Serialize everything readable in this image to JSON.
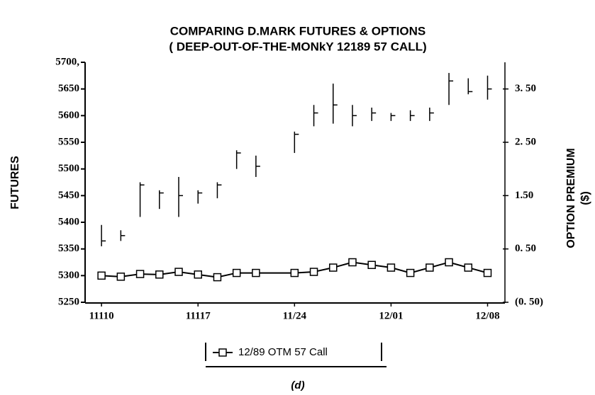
{
  "chart_data": {
    "type": "hlc",
    "title": "COMPARING D.MARK FUTURES & OPTIONS",
    "subtitle": "( DEEP-OUT-OF-THE-MONkY 12189 57 CALL)",
    "y_label": "FUTURES",
    "y2_label": "OPTION PREMIUM",
    "y2_unit": "($)",
    "caption": "(d)",
    "x": [
      0,
      1,
      2,
      3,
      4,
      5,
      6,
      7,
      8,
      10,
      11,
      12,
      13,
      14,
      15,
      16,
      17,
      18,
      19,
      20
    ],
    "xlim": [
      -0.85,
      20.9
    ],
    "xticks": [
      {
        "value": 0,
        "label": "11110"
      },
      {
        "value": 5,
        "label": "11117"
      },
      {
        "value": 10,
        "label": "11/24"
      },
      {
        "value": 15,
        "label": "12/01"
      },
      {
        "value": 20,
        "label": "12/08"
      }
    ],
    "ylim": [
      5250,
      5700
    ],
    "yticks": [
      5250,
      5300,
      5350,
      5400,
      5450,
      5500,
      5550,
      5600,
      5650,
      {
        "value": 5700,
        "label": "5700,"
      }
    ],
    "y2lim": [
      -0.5,
      4.0
    ],
    "y2ticks": [
      {
        "value": -0.5,
        "label": "(0. 50)"
      },
      {
        "value": 0.5,
        "label": "0. 50"
      },
      {
        "value": 1.5,
        "label": "1.50"
      },
      {
        "value": 2.5,
        "label": "2. 50"
      },
      {
        "value": 3.5,
        "label": "3. 50"
      }
    ],
    "futures": {
      "color": "#000000",
      "high": [
        5395,
        5385,
        5475,
        5460,
        5485,
        5460,
        5475,
        5535,
        5525,
        5570,
        5620,
        5660,
        5620,
        5615,
        5605,
        5610,
        5615,
        5680,
        5670,
        5675
      ],
      "low": [
        5355,
        5365,
        5410,
        5425,
        5410,
        5435,
        5445,
        5500,
        5485,
        5530,
        5580,
        5585,
        5580,
        5590,
        5590,
        5590,
        5590,
        5620,
        5640,
        5630
      ],
      "close": [
        5365,
        5375,
        5470,
        5455,
        5450,
        5455,
        5470,
        5530,
        5505,
        5565,
        5605,
        5620,
        5600,
        5605,
        5600,
        5600,
        5605,
        5665,
        5645,
        5650
      ]
    },
    "series": [
      {
        "name": "12/89 OTM 57 Call",
        "color": "#000000",
        "axis": "y2",
        "values": [
          0.0,
          -0.02,
          0.03,
          0.02,
          0.07,
          0.02,
          -0.03,
          0.05,
          0.05,
          0.05,
          0.07,
          0.15,
          0.25,
          0.2,
          0.15,
          0.05,
          0.15,
          0.25,
          0.15,
          0.05
        ]
      }
    ]
  }
}
